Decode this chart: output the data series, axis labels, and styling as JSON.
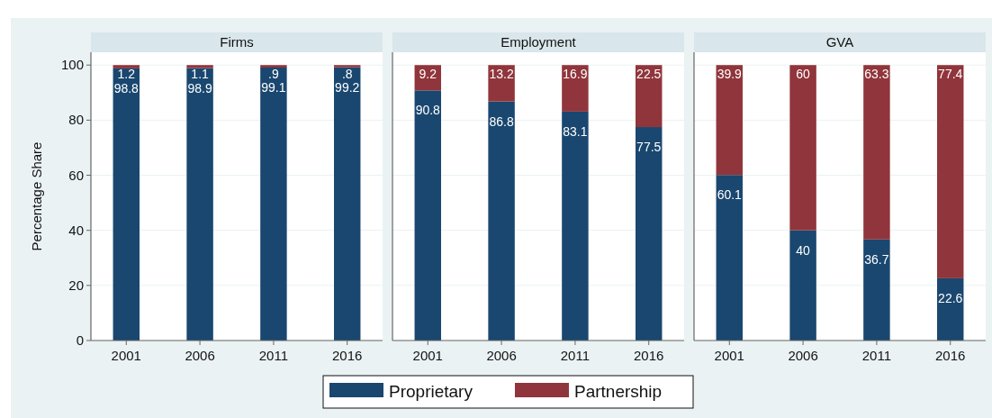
{
  "chart_data": [
    {
      "type": "bar",
      "title": "Firms",
      "categories": [
        "2001",
        "2006",
        "2011",
        "2016"
      ],
      "stacked": true,
      "ylabel": "Percentage Share",
      "ylim": [
        0,
        104
      ],
      "yticks": [
        0,
        20,
        40,
        60,
        80,
        100
      ],
      "grid": "y",
      "legend": "bottom",
      "series": [
        {
          "name": "Proprietary",
          "color": "#1a476f",
          "values": [
            98.8,
            98.9,
            99.1,
            99.2
          ],
          "value_labels": [
            "98.8",
            "98.9",
            "99.1",
            "99.2"
          ]
        },
        {
          "name": "Partnership",
          "color": "#90353b",
          "values": [
            1.2,
            1.1,
            0.9,
            0.8
          ],
          "value_labels": [
            "1.2",
            "1.1",
            ".9",
            ".8"
          ]
        }
      ]
    },
    {
      "type": "bar",
      "title": "Employment",
      "categories": [
        "2001",
        "2006",
        "2011",
        "2016"
      ],
      "stacked": true,
      "ylim": [
        0,
        104
      ],
      "yticks": [
        0,
        20,
        40,
        60,
        80,
        100
      ],
      "grid": "y",
      "tick_labels": "x",
      "legend": "bottom",
      "series": [
        {
          "name": "Proprietary",
          "color": "#1a476f",
          "values": [
            90.8,
            86.8,
            83.1,
            77.5
          ],
          "value_labels": [
            "90.8",
            "86.8",
            "83.1",
            "77.5"
          ]
        },
        {
          "name": "Partnership",
          "color": "#90353b",
          "values": [
            9.2,
            13.2,
            16.9,
            22.5
          ],
          "value_labels": [
            "9.2",
            "13.2",
            "16.9",
            "22.5"
          ]
        }
      ]
    },
    {
      "type": "bar",
      "title": "GVA",
      "categories": [
        "2001",
        "2006",
        "2011",
        "2016"
      ],
      "stacked": true,
      "ylim": [
        0,
        104
      ],
      "yticks": [
        0,
        20,
        40,
        60,
        80,
        100
      ],
      "grid": "y",
      "tick_labels": "x",
      "legend": "bottom",
      "series": [
        {
          "name": "Proprietary",
          "color": "#1a476f",
          "values": [
            60.1,
            40,
            36.7,
            22.6
          ],
          "value_labels": [
            "60.1",
            "40",
            "36.7",
            "22.6"
          ]
        },
        {
          "name": "Partnership",
          "color": "#90353b",
          "values": [
            39.9,
            60,
            63.3,
            77.4
          ],
          "value_labels": [
            "39.9",
            "60",
            "63.3",
            "77.4"
          ]
        }
      ]
    }
  ]
}
